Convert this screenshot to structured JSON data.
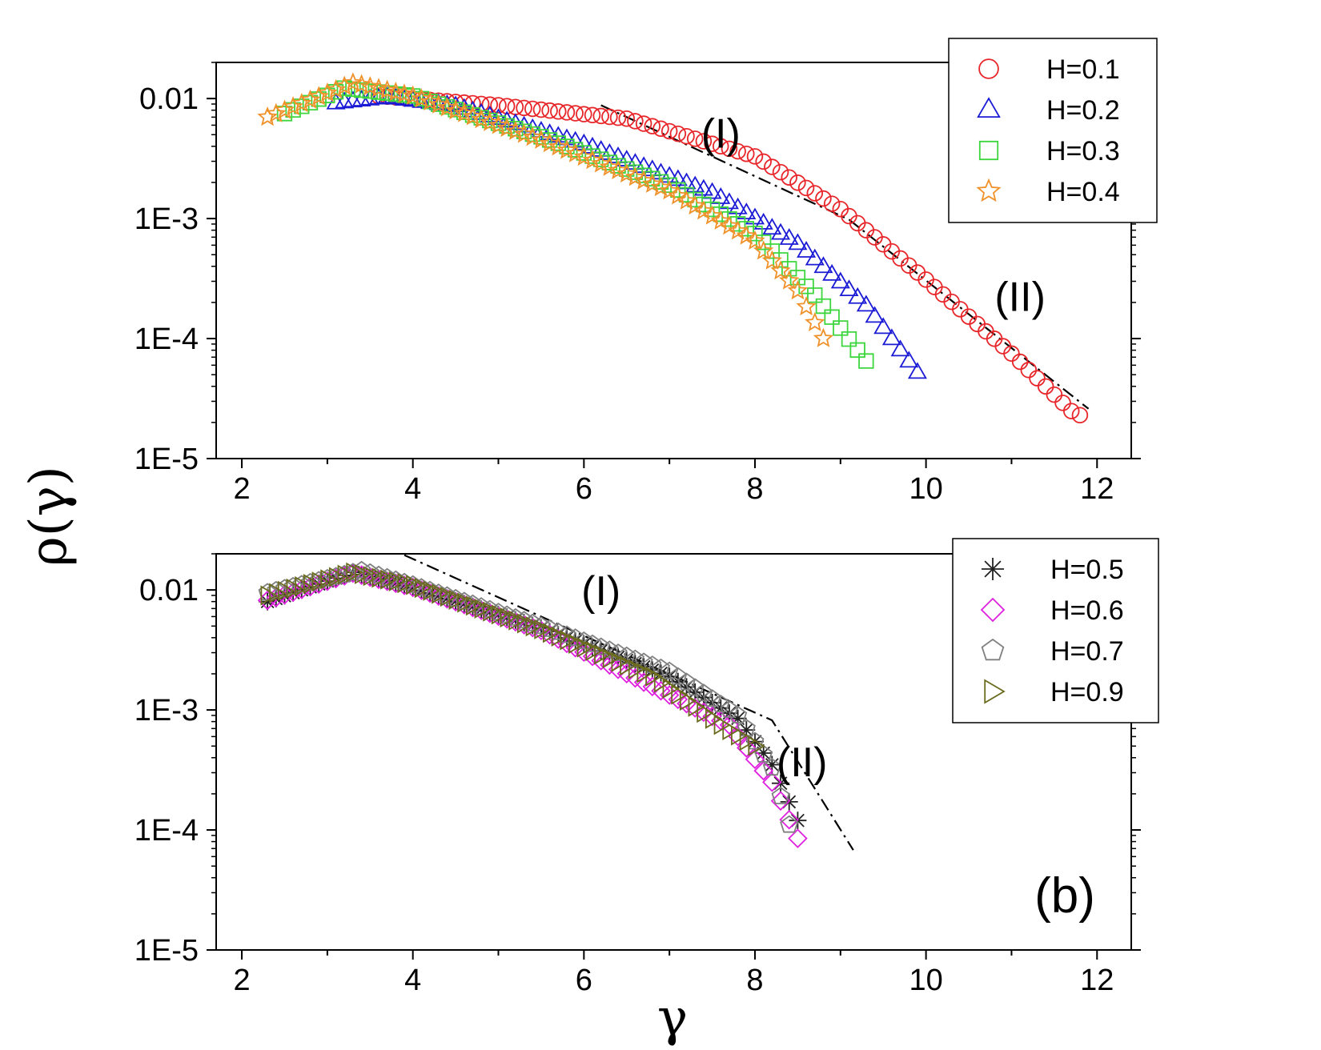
{
  "figure": {
    "ylabel": "ρ(γ)",
    "xlabel": "γ"
  },
  "chart_data": [
    {
      "type": "scatter",
      "panel": "top",
      "panel_label": "",
      "xlabel": "γ",
      "ylabel": "ρ(γ)",
      "xlim": [
        1.7,
        12.4
      ],
      "ylim": [
        1e-05,
        0.02
      ],
      "yscale": "log",
      "x_ticks": [
        2,
        4,
        6,
        8,
        10,
        12
      ],
      "x_tick_labels": [
        "2",
        "4",
        "6",
        "8",
        "10",
        "12"
      ],
      "y_ticks": [
        1e-05,
        0.0001,
        0.001,
        0.01
      ],
      "y_tick_labels": [
        "1E-5",
        "1E-4",
        "1E-3",
        "0.01"
      ],
      "legend_position": "top-right",
      "series": [
        {
          "name": "H=0.1",
          "marker": "circle",
          "color": "#e8262a",
          "x_range": [
            3.6,
            11.75
          ],
          "curve": [
            [
              3.6,
              0.0105
            ],
            [
              5.0,
              0.0088
            ],
            [
              6.5,
              0.0068
            ],
            [
              8.0,
              0.0033
            ],
            [
              9.0,
              0.0012
            ],
            [
              10.0,
              0.00031
            ],
            [
              11.0,
              7.5e-05
            ],
            [
              11.75,
              2.3e-05
            ]
          ]
        },
        {
          "name": "H=0.2",
          "marker": "triangle",
          "color": "#1b1bd6",
          "x_range": [
            3.1,
            9.95
          ],
          "curve": [
            [
              3.1,
              0.0092
            ],
            [
              3.7,
              0.0103
            ],
            [
              4.5,
              0.0087
            ],
            [
              6.0,
              0.0042
            ],
            [
              7.5,
              0.00165
            ],
            [
              8.5,
              0.00062
            ],
            [
              9.3,
              0.00019
            ],
            [
              9.95,
              4.7e-05
            ]
          ]
        },
        {
          "name": "H=0.3",
          "marker": "square",
          "color": "#3ed63e",
          "x_range": [
            2.5,
            9.3
          ],
          "curve": [
            [
              2.5,
              0.0075
            ],
            [
              3.2,
              0.0122
            ],
            [
              4.0,
              0.0105
            ],
            [
              5.5,
              0.0048
            ],
            [
              7.0,
              0.0019
            ],
            [
              8.0,
              0.00075
            ],
            [
              8.7,
              0.00023
            ],
            [
              9.3,
              6.5e-05
            ]
          ]
        },
        {
          "name": "H=0.4",
          "marker": "star",
          "color": "#f0912a",
          "x_range": [
            2.3,
            8.8
          ],
          "curve": [
            [
              2.3,
              0.007
            ],
            [
              3.3,
              0.0135
            ],
            [
              4.0,
              0.0105
            ],
            [
              5.5,
              0.0045
            ],
            [
              7.0,
              0.0017
            ],
            [
              8.0,
              0.00065
            ],
            [
              8.5,
              0.00025
            ],
            [
              8.8,
              0.0001
            ]
          ]
        }
      ],
      "guide_line": {
        "style": "dash-dot",
        "points": [
          [
            6.2,
            0.0088
          ],
          [
            9.1,
            0.00098
          ],
          [
            11.9,
            2.6e-05
          ]
        ]
      },
      "annotations": [
        {
          "text": "(I)",
          "x": 7.6,
          "y": 0.0039
        },
        {
          "text": "(II)",
          "x": 11.1,
          "y": 0.00017
        }
      ]
    },
    {
      "type": "scatter",
      "panel": "bottom",
      "panel_label": "(b)",
      "xlabel": "γ",
      "ylabel": "",
      "xlim": [
        1.7,
        12.4
      ],
      "ylim": [
        1e-05,
        0.02
      ],
      "yscale": "log",
      "x_ticks": [
        2,
        4,
        6,
        8,
        10,
        12
      ],
      "x_tick_labels": [
        "2",
        "4",
        "6",
        "8",
        "10",
        "12"
      ],
      "y_ticks": [
        1e-05,
        0.0001,
        0.001,
        0.01
      ],
      "y_tick_labels": [
        "1E-5",
        "1E-4",
        "1E-3",
        "0.01"
      ],
      "legend_position": "top-right",
      "series": [
        {
          "name": "H=0.5",
          "marker": "asterisk",
          "color": "#222222",
          "x_range": [
            2.3,
            8.5
          ],
          "curve": [
            [
              2.3,
              0.008
            ],
            [
              3.3,
              0.014
            ],
            [
              4.0,
              0.0105
            ],
            [
              5.5,
              0.0048
            ],
            [
              7.0,
              0.0019
            ],
            [
              7.8,
              0.00085
            ],
            [
              8.2,
              0.00035
            ],
            [
              8.5,
              0.00012
            ]
          ]
        },
        {
          "name": "H=0.6",
          "marker": "diamond",
          "color": "#e020e0",
          "x_range": [
            2.3,
            8.5
          ],
          "curve": [
            [
              2.3,
              0.0082
            ],
            [
              3.3,
              0.0138
            ],
            [
              4.0,
              0.0105
            ],
            [
              5.5,
              0.0046
            ],
            [
              6.7,
              0.0017
            ],
            [
              7.7,
              0.00075
            ],
            [
              8.2,
              0.00025
            ],
            [
              8.5,
              8.5e-05
            ]
          ]
        },
        {
          "name": "H=0.7",
          "marker": "pentagon",
          "color": "#808080",
          "x_range": [
            2.3,
            8.4
          ],
          "curve": [
            [
              2.3,
              0.0095
            ],
            [
              3.4,
              0.0145
            ],
            [
              4.0,
              0.011
            ],
            [
              5.5,
              0.005
            ],
            [
              7.0,
              0.0021
            ],
            [
              7.8,
              0.0009
            ],
            [
              8.2,
              0.00033
            ],
            [
              8.4,
              0.00011
            ]
          ]
        },
        {
          "name": "H=0.9",
          "marker": "triangle-right",
          "color": "#6b6b1e",
          "x_range": [
            2.3,
            8.0
          ],
          "curve": [
            [
              2.3,
              0.009
            ],
            [
              3.3,
              0.014
            ],
            [
              4.0,
              0.011
            ],
            [
              5.5,
              0.0047
            ],
            [
              6.8,
              0.0019
            ],
            [
              7.6,
              0.00075
            ],
            [
              8.0,
              0.0005
            ]
          ]
        }
      ],
      "guide_line": {
        "style": "dash-dot",
        "points": [
          [
            3.9,
            0.0195
          ],
          [
            8.2,
            0.00082
          ],
          [
            9.15,
            6.8e-05
          ]
        ]
      },
      "annotations": [
        {
          "text": "(I)",
          "x": 6.2,
          "y": 0.0075
        },
        {
          "text": "(II)",
          "x": 8.55,
          "y": 0.00028
        }
      ]
    }
  ]
}
